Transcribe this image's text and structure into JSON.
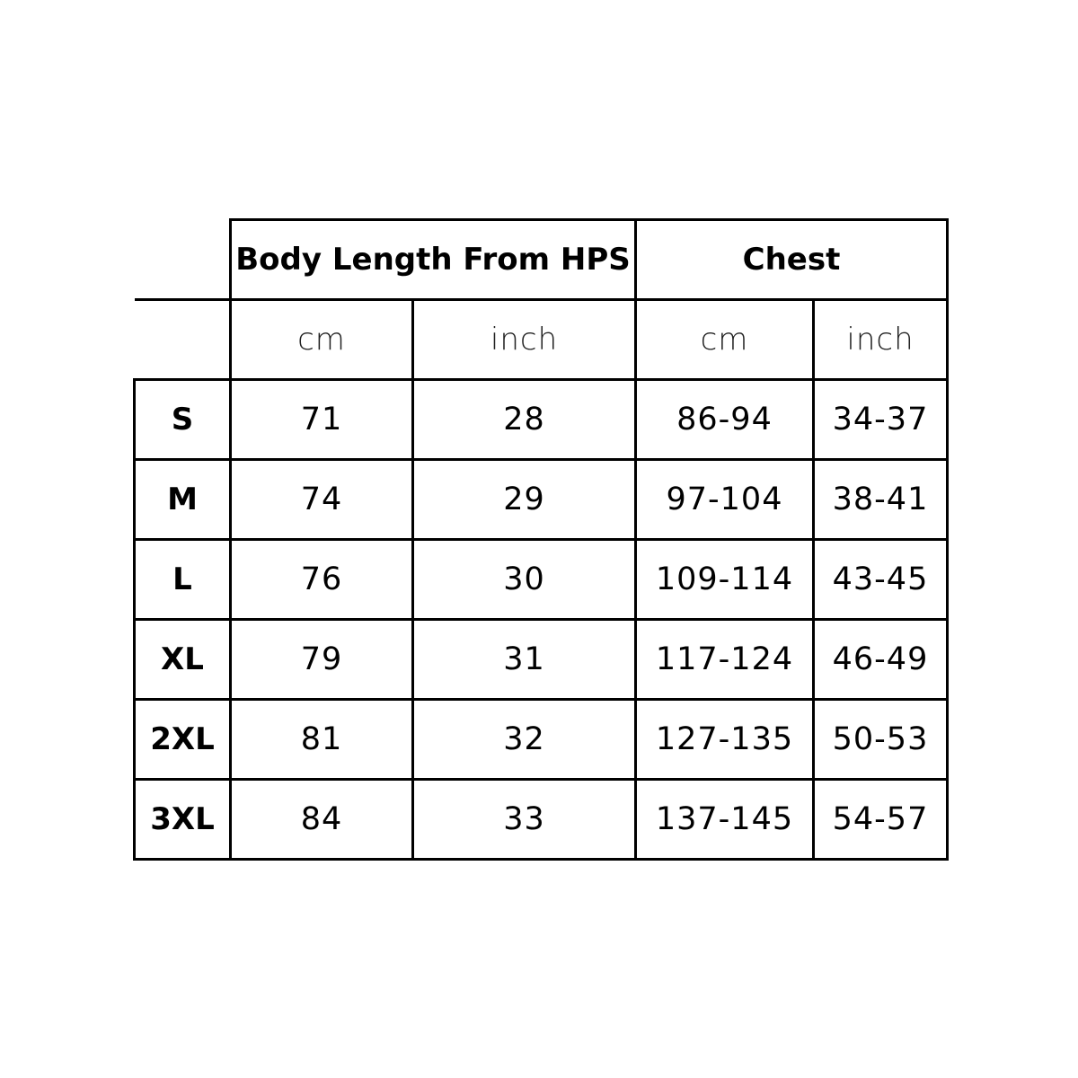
{
  "headers": {
    "body_length": "Body Length From HPS",
    "chest": "Chest"
  },
  "units": [
    "cm",
    "inch",
    "cm",
    "inch"
  ],
  "rows": [
    {
      "size": "S",
      "values": [
        "71",
        "28",
        "86-94",
        "34-37"
      ]
    },
    {
      "size": "M",
      "values": [
        "74",
        "29",
        "97-104",
        "38-41"
      ]
    },
    {
      "size": "L",
      "values": [
        "76",
        "30",
        "109-114",
        "43-45"
      ]
    },
    {
      "size": "XL",
      "values": [
        "79",
        "31",
        "117-124",
        "46-49"
      ]
    },
    {
      "size": "2XL",
      "values": [
        "81",
        "32",
        "127-135",
        "50-53"
      ]
    },
    {
      "size": "3XL",
      "values": [
        "84",
        "33",
        "137-145",
        "54-57"
      ]
    }
  ]
}
